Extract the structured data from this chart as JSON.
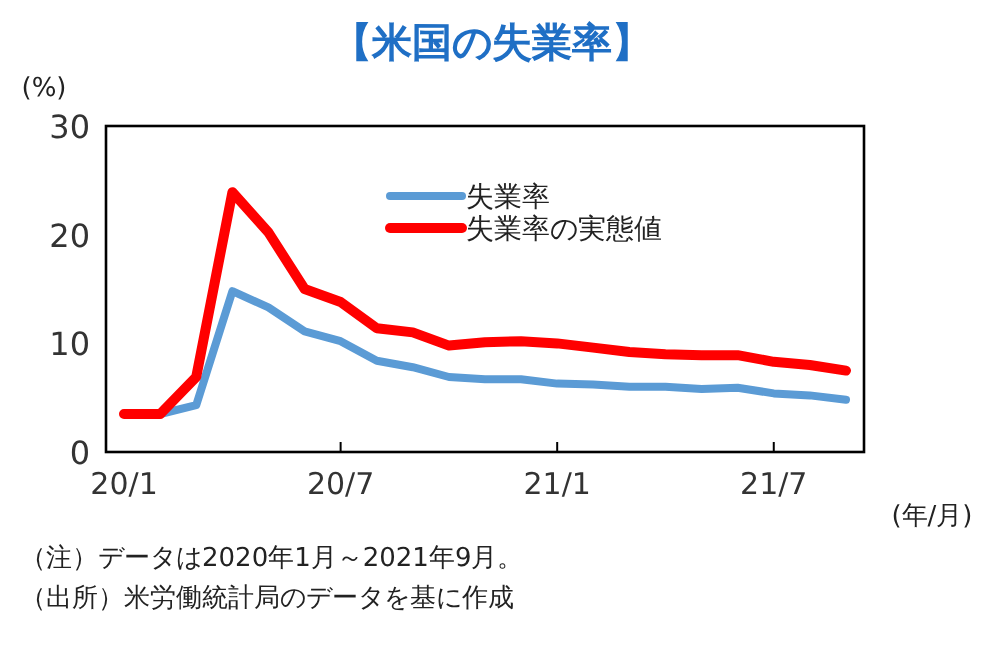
{
  "chart_data": {
    "type": "line",
    "title": "【米国の失業率】",
    "ylabel": "(%)",
    "xlabel": "(年/月)",
    "categories": [
      "20/1",
      null,
      null,
      null,
      null,
      null,
      "20/7",
      null,
      null,
      null,
      null,
      null,
      "21/1",
      null,
      null,
      null,
      null,
      null,
      "21/7",
      null,
      null
    ],
    "series": [
      {
        "name": "失業率",
        "color": "#5b9bd5",
        "values": [
          null,
          3.5,
          4.3,
          14.8,
          13.3,
          11.1,
          10.2,
          8.4,
          7.8,
          6.9,
          6.7,
          6.7,
          6.3,
          6.2,
          6.0,
          6.0,
          5.8,
          5.9,
          5.4,
          5.2,
          4.8
        ]
      },
      {
        "name": "失業率の実態値",
        "color": "#ff0000",
        "values": [
          3.5,
          3.5,
          6.9,
          23.9,
          20.2,
          15.0,
          13.8,
          11.4,
          11.0,
          9.8,
          10.1,
          10.2,
          10.0,
          9.6,
          9.2,
          9.0,
          8.9,
          8.9,
          8.3,
          8.0,
          7.5
        ]
      }
    ],
    "ylim": [
      0,
      30
    ],
    "yticks": [
      0,
      10,
      20,
      30
    ],
    "grid": false,
    "legend": "top",
    "marker": "none",
    "line_style": "solid",
    "annotations": [
      "（注）データは2020年1月～2021年9月。",
      "（出所）米労働統計局のデータを基に作成"
    ]
  }
}
